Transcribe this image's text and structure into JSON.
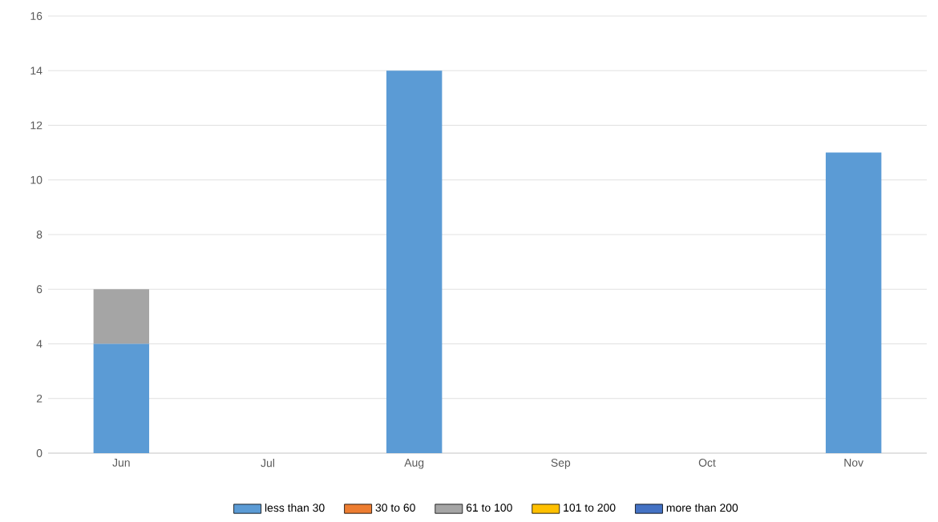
{
  "chart_data": {
    "type": "bar",
    "stacked": true,
    "categories": [
      "Jun",
      "Jul",
      "Aug",
      "Sep",
      "Oct",
      "Nov"
    ],
    "series": [
      {
        "name": "less than 30",
        "color": "#5b9bd5",
        "values": [
          4,
          0,
          14,
          0,
          0,
          11
        ]
      },
      {
        "name": "30 to 60",
        "color": "#ed7d31",
        "values": [
          0,
          0,
          0,
          0,
          0,
          0
        ]
      },
      {
        "name": "61 to 100",
        "color": "#a5a5a5",
        "values": [
          2,
          0,
          0,
          0,
          0,
          0
        ]
      },
      {
        "name": "101 to 200",
        "color": "#ffc000",
        "values": [
          0,
          0,
          0,
          0,
          0,
          0
        ]
      },
      {
        "name": "more than 200",
        "color": "#4472c4",
        "values": [
          0,
          0,
          0,
          0,
          0,
          0
        ]
      }
    ],
    "ylim": [
      0,
      16
    ],
    "yticks": [
      0,
      2,
      4,
      6,
      8,
      10,
      12,
      14,
      16
    ],
    "grid": "y",
    "legend": "bottom"
  }
}
